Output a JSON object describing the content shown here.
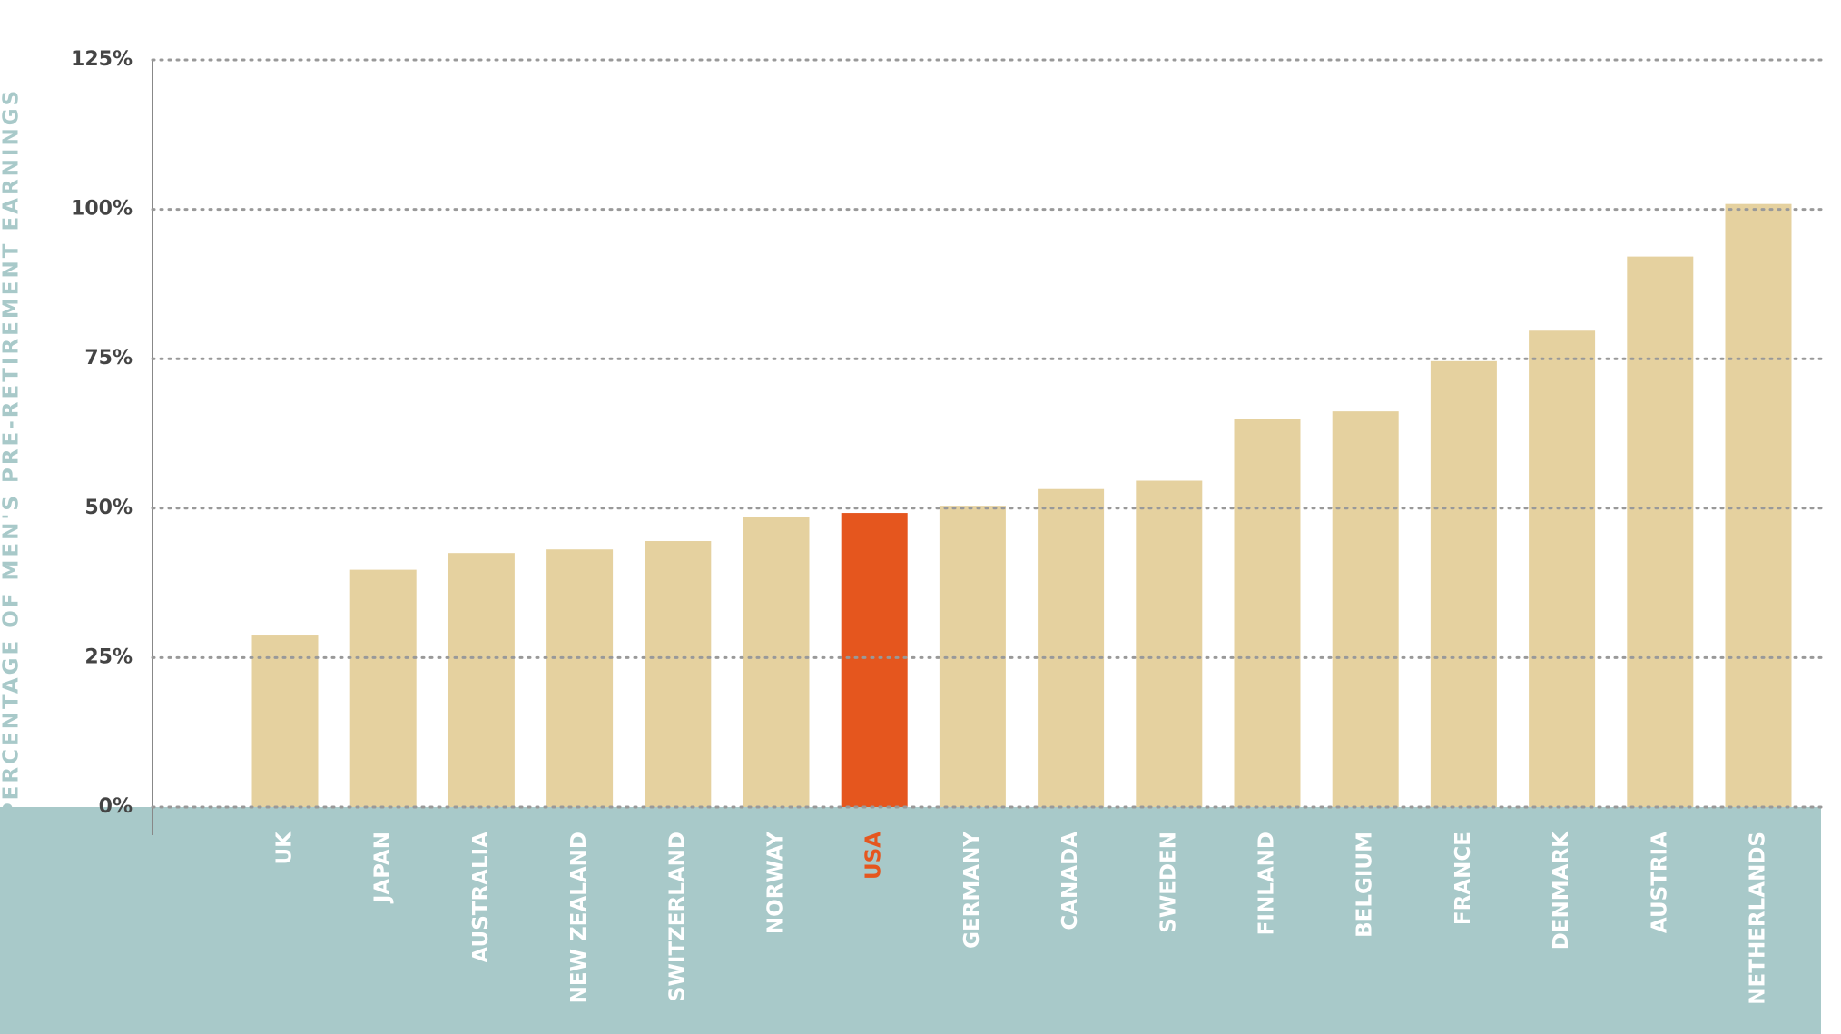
{
  "chart_data": {
    "type": "bar",
    "y_label": "PERCENTAGE OF MEN'S PRE-RETIREMENT EARNINGS",
    "categories": [
      "UK",
      "JAPAN",
      "AUSTRALIA",
      "NEW ZEALAND",
      "SWITZERLAND",
      "NORWAY",
      "USA",
      "GERMANY",
      "CANADA",
      "SWEDEN",
      "FINLAND",
      "BELGIUM",
      "FRANCE",
      "DENMARK",
      "AUSTRIA",
      "NETHERLANDS"
    ],
    "values": [
      28.7,
      39.7,
      42.5,
      43.1,
      44.5,
      48.6,
      49.2,
      50.4,
      53.2,
      54.6,
      65,
      66.2,
      74.6,
      79.7,
      92.1,
      100.9
    ],
    "color": "#e5d19f",
    "colors": [
      "#e5d19f",
      "#e5d19f",
      "#e5d19f",
      "#e5d19f",
      "#e5d19f",
      "#e5d19f",
      "#e5561e",
      "#e5d19f",
      "#e5d19f",
      "#e5d19f",
      "#e5d19f",
      "#e5d19f",
      "#e5d19f",
      "#e5d19f",
      "#e5d19f",
      "#e5d19f"
    ],
    "ylim": [
      0,
      125
    ],
    "yticks": [
      {
        "value": 0,
        "label": "0%"
      },
      {
        "value": 25,
        "label": "25%"
      },
      {
        "value": 50,
        "label": "50%"
      },
      {
        "value": 75,
        "label": "75%"
      },
      {
        "value": 100,
        "label": "100%"
      },
      {
        "value": 125,
        "label": "125%"
      }
    ],
    "grid": true
  }
}
